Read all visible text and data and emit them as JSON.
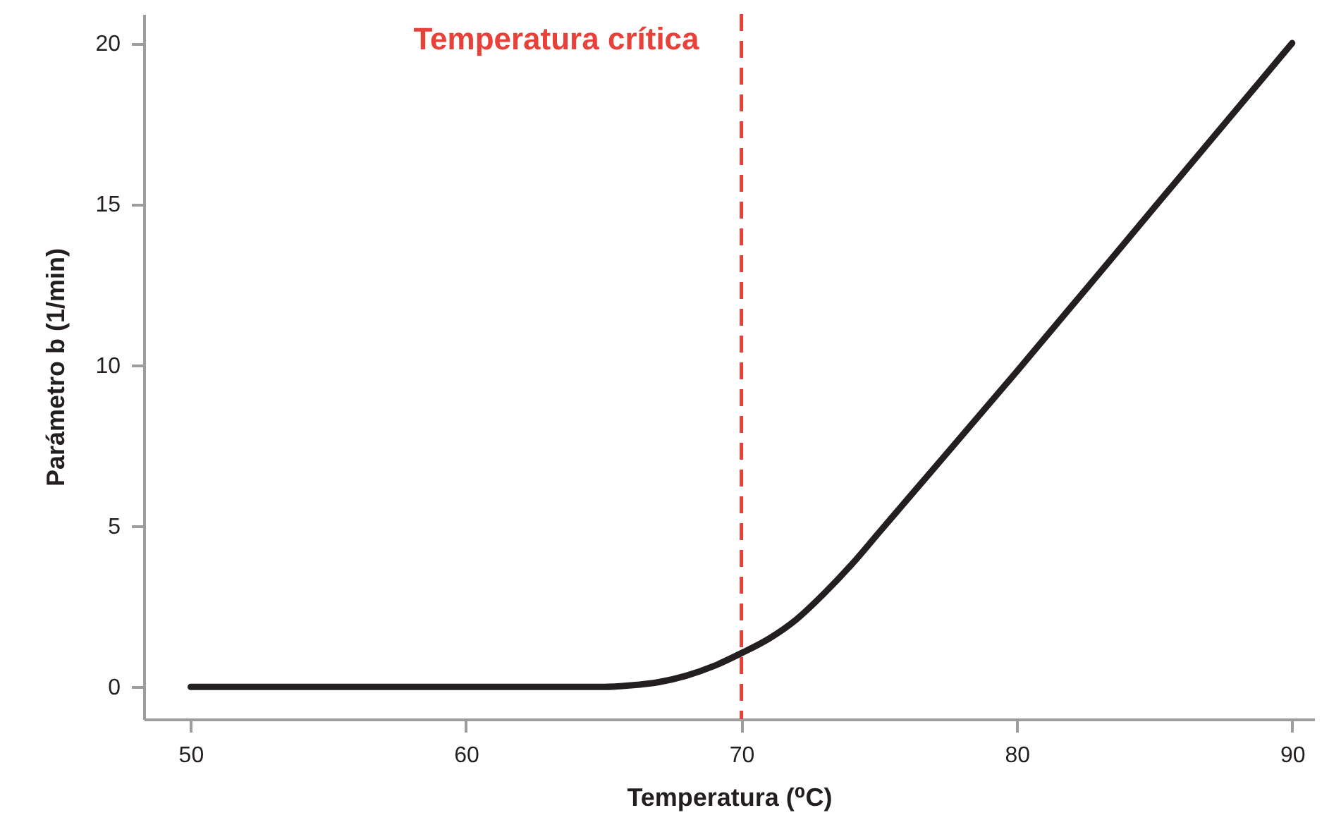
{
  "chart_data": {
    "type": "line",
    "xlabel": "Temperatura (⁰C)",
    "ylabel": "Parámetro b (1/min)",
    "x": [
      50,
      60,
      65,
      66,
      67,
      68,
      69,
      70,
      71,
      72,
      73,
      74,
      75,
      76,
      80,
      85,
      90
    ],
    "series": [
      {
        "color": "#231f20",
        "values": [
          0,
          0,
          0,
          0.05,
          0.15,
          0.35,
          0.65,
          1.05,
          1.5,
          2.1,
          2.9,
          3.8,
          4.8,
          5.8,
          9.8,
          14.9,
          20
        ]
      }
    ],
    "xlim": [
      48.3,
      90.8
    ],
    "xticks": [
      50,
      60,
      70,
      80,
      90
    ],
    "ylim": [
      -1,
      20.9
    ],
    "yticks": [
      0,
      5,
      10,
      15,
      20
    ],
    "ref_lines": [
      {
        "axis": "x",
        "value": 70,
        "label": "Temperatura crítica",
        "color": "#e8413a",
        "line_style": "dashed"
      }
    ],
    "grid": false,
    "marker": "none",
    "line_style": "solid"
  }
}
